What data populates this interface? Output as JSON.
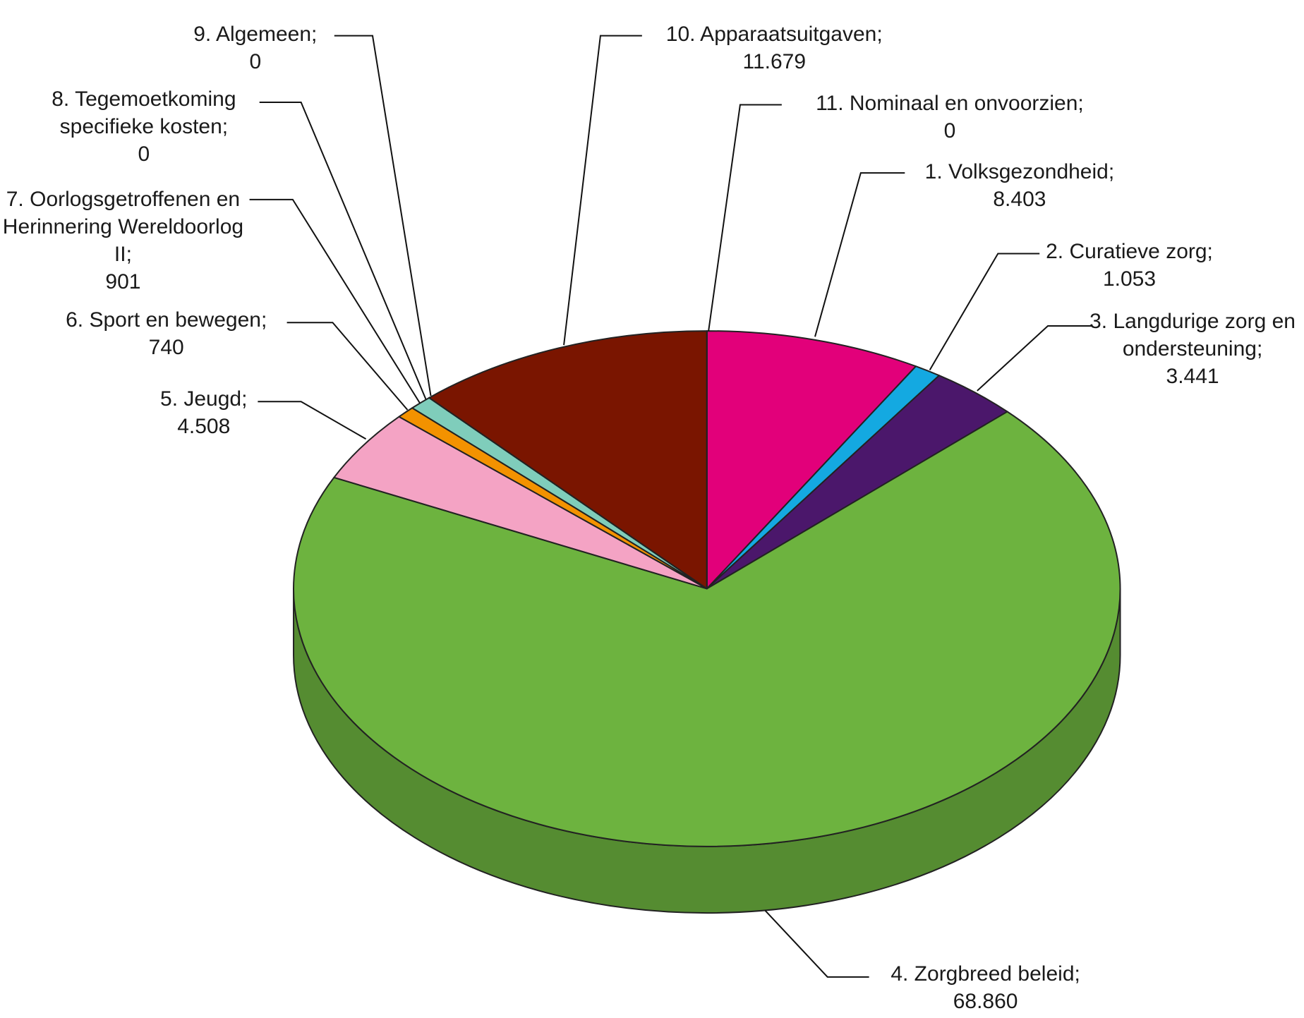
{
  "chart_data": {
    "type": "pie",
    "categories": [
      "1. Volksgezondheid;",
      "2. Curatieve zorg;",
      "3. Langdurige zorg en ondersteuning;",
      "4. Zorgbreed beleid;",
      "5. Jeugd;",
      "6. Sport en bewegen;",
      "7. Oorlogsgetroffenen en Herinnering Wereldoorlog II;",
      "8. Tegemoetkoming specifieke kosten;",
      "9. Algemeen;",
      "10. Apparaatsuitgaven;",
      "11. Nominaal en onvoorzien;"
    ],
    "values": [
      8403,
      1053,
      3441,
      68860,
      4508,
      740,
      901,
      0,
      0,
      11679,
      0
    ],
    "value_labels": [
      "8.403",
      "1.053",
      "3.441",
      "68.860",
      "4.508",
      "740",
      "901",
      "0",
      "0",
      "11.679",
      "0"
    ],
    "colors": [
      "#e2007a",
      "#14a9e1",
      "#4b176b",
      "#6db33f",
      "#f4a3c4",
      "#f39200",
      "#7fcdbb",
      "#9fd8cb",
      "#b0b0b0",
      "#7a1500",
      "#888888"
    ]
  }
}
